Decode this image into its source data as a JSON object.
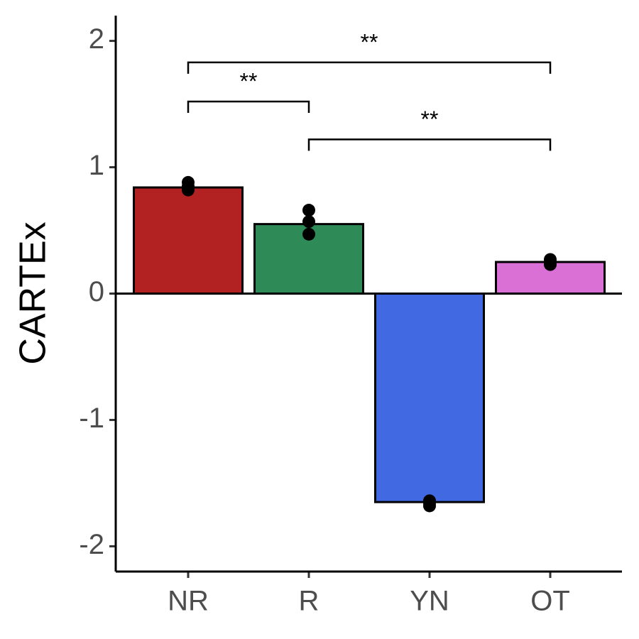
{
  "chart_data": {
    "type": "bar",
    "y_label": "CARTEx",
    "categories": [
      "NR",
      "R",
      "YN",
      "OT"
    ],
    "values": [
      0.84,
      0.55,
      -1.65,
      0.25
    ],
    "colors": [
      "#b22222",
      "#2e8b57",
      "#4169e1",
      "#da70d6"
    ],
    "points": [
      [
        0.88,
        0.85,
        0.82
      ],
      [
        0.66,
        0.57,
        0.47
      ],
      [
        -1.64,
        -1.66,
        -1.68
      ],
      [
        0.27,
        0.25,
        0.23
      ]
    ],
    "ylim": [
      -2.2,
      2.2
    ],
    "yticks": [
      -2,
      -1,
      0,
      1,
      2
    ],
    "comparisons": [
      {
        "from": "NR",
        "to": "OT",
        "y": 1.83,
        "label": "**"
      },
      {
        "from": "NR",
        "to": "R",
        "y": 1.52,
        "label": "**"
      },
      {
        "from": "R",
        "to": "OT",
        "y": 1.22,
        "label": "**"
      }
    ]
  }
}
